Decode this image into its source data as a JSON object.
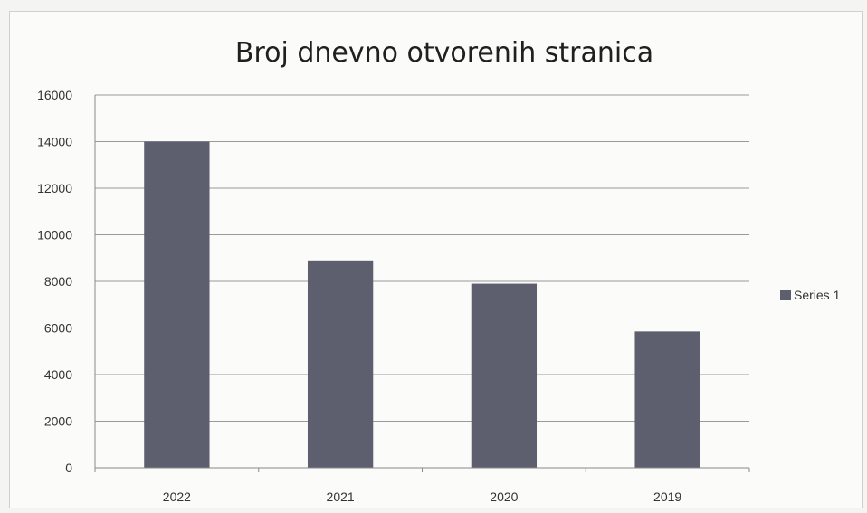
{
  "chart_data": {
    "type": "bar",
    "title": "Broj dnevno otvorenih stranica",
    "categories": [
      "2022",
      "2021",
      "2020",
      "2019"
    ],
    "series": [
      {
        "name": "Series 1",
        "values": [
          14000,
          8900,
          7900,
          5850
        ],
        "color": "#5d5e6e"
      }
    ],
    "ylim": [
      0,
      16000
    ],
    "yticks": [
      0,
      2000,
      4000,
      6000,
      8000,
      10000,
      12000,
      14000,
      16000
    ],
    "xlabel": "",
    "ylabel": "",
    "grid": true,
    "legend": "right"
  }
}
